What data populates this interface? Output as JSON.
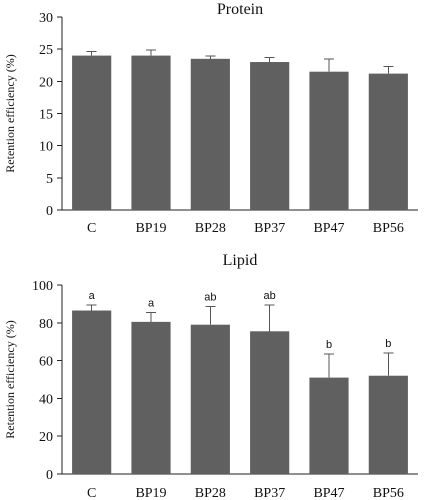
{
  "chart_data": [
    {
      "type": "bar",
      "title": "Protein",
      "ylabel": "Retention efficiency (%)",
      "xlabel": "",
      "categories": [
        "C",
        "BP19",
        "BP28",
        "BP37",
        "BP47",
        "BP56"
      ],
      "values": [
        24.0,
        24.0,
        23.5,
        23.0,
        21.5,
        21.2
      ],
      "errors": [
        0.6,
        0.9,
        0.4,
        0.7,
        2.0,
        1.1
      ],
      "letters": [
        "",
        "",
        "",
        "",
        "",
        ""
      ],
      "ylim": [
        0,
        30
      ],
      "yticks": [
        0,
        5,
        10,
        15,
        20,
        25,
        30
      ],
      "bar_color": "#606060",
      "grid": false
    },
    {
      "type": "bar",
      "title": "Lipid",
      "ylabel": "Retention efficiency (%)",
      "xlabel": "",
      "categories": [
        "C",
        "BP19",
        "BP28",
        "BP37",
        "BP47",
        "BP56"
      ],
      "values": [
        86.5,
        80.5,
        79.0,
        75.5,
        51.0,
        52.0
      ],
      "errors": [
        3.0,
        5.0,
        9.5,
        14.0,
        12.5,
        12.0
      ],
      "letters": [
        "a",
        "a",
        "ab",
        "ab",
        "b",
        "b"
      ],
      "ylim": [
        0,
        100
      ],
      "yticks": [
        0,
        20,
        40,
        60,
        80,
        100
      ],
      "bar_color": "#606060",
      "grid": false
    }
  ]
}
